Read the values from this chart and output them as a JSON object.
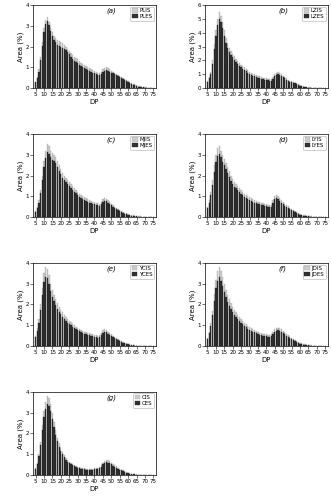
{
  "subplots": [
    {
      "label": "(a)",
      "IS_name": "PLIS",
      "ES_name": "PLES"
    },
    {
      "label": "(b)",
      "IS_name": "LZIS",
      "ES_name": "LZES"
    },
    {
      "label": "(c)",
      "IS_name": "MJIS",
      "ES_name": "MJES"
    },
    {
      "label": "(d)",
      "IS_name": "LYIS",
      "ES_name": "LYES"
    },
    {
      "label": "(e)",
      "IS_name": "YCIS",
      "ES_name": "YCES"
    },
    {
      "label": "(f)",
      "IS_name": "JDIS",
      "ES_name": "JDES"
    },
    {
      "label": "(g)",
      "IS_name": "CIS",
      "ES_name": "CES"
    }
  ],
  "dp_values": [
    5,
    6,
    7,
    8,
    9,
    10,
    11,
    12,
    13,
    14,
    15,
    16,
    17,
    18,
    19,
    20,
    21,
    22,
    23,
    24,
    25,
    26,
    27,
    28,
    29,
    30,
    31,
    32,
    33,
    34,
    35,
    36,
    37,
    38,
    39,
    40,
    41,
    42,
    43,
    44,
    45,
    46,
    47,
    48,
    49,
    50,
    51,
    52,
    53,
    54,
    55,
    56,
    57,
    58,
    59,
    60,
    61,
    62,
    63,
    64,
    65,
    66,
    67,
    68,
    69,
    70,
    71,
    72,
    73,
    74,
    75
  ],
  "series_IS": {
    "a": [
      0.3,
      0.55,
      0.9,
      1.5,
      2.2,
      2.9,
      3.3,
      3.4,
      3.2,
      2.9,
      2.7,
      2.5,
      2.4,
      2.3,
      2.25,
      2.2,
      2.15,
      2.1,
      2.0,
      1.9,
      1.8,
      1.7,
      1.6,
      1.5,
      1.45,
      1.4,
      1.3,
      1.2,
      1.15,
      1.1,
      1.05,
      1.0,
      0.95,
      0.9,
      0.88,
      0.85,
      0.8,
      0.75,
      0.72,
      0.8,
      0.9,
      0.95,
      1.0,
      0.95,
      0.9,
      0.85,
      0.8,
      0.75,
      0.7,
      0.65,
      0.6,
      0.55,
      0.5,
      0.45,
      0.4,
      0.35,
      0.3,
      0.25,
      0.2,
      0.18,
      0.15,
      0.12,
      0.1,
      0.08,
      0.06,
      0.05,
      0.04,
      0.03,
      0.02,
      0.01,
      0.01
    ],
    "b": [
      0.5,
      0.8,
      1.2,
      2.0,
      3.2,
      4.2,
      5.0,
      5.5,
      5.2,
      4.8,
      4.2,
      3.6,
      3.2,
      2.9,
      2.7,
      2.5,
      2.3,
      2.1,
      1.95,
      1.8,
      1.7,
      1.6,
      1.5,
      1.4,
      1.3,
      1.2,
      1.1,
      1.05,
      1.0,
      0.95,
      0.9,
      0.85,
      0.8,
      0.75,
      0.72,
      0.7,
      0.68,
      0.65,
      0.63,
      0.8,
      1.0,
      1.1,
      1.15,
      1.1,
      1.0,
      0.9,
      0.8,
      0.7,
      0.6,
      0.55,
      0.5,
      0.45,
      0.4,
      0.35,
      0.28,
      0.22,
      0.18,
      0.14,
      0.11,
      0.08,
      0.06,
      0.05,
      0.04,
      0.03,
      0.02,
      0.01,
      0.01,
      0.01,
      0.0,
      0.0,
      0.0
    ],
    "c": [
      0.3,
      0.5,
      0.8,
      1.3,
      2.0,
      2.7,
      3.2,
      3.5,
      3.4,
      3.2,
      3.1,
      3.0,
      2.9,
      2.7,
      2.5,
      2.3,
      2.1,
      2.0,
      1.9,
      1.8,
      1.7,
      1.6,
      1.5,
      1.4,
      1.3,
      1.2,
      1.1,
      1.05,
      1.0,
      0.95,
      0.9,
      0.85,
      0.8,
      0.78,
      0.75,
      0.72,
      0.7,
      0.68,
      0.65,
      0.75,
      0.85,
      0.9,
      0.88,
      0.8,
      0.72,
      0.65,
      0.58,
      0.5,
      0.45,
      0.4,
      0.35,
      0.3,
      0.25,
      0.22,
      0.18,
      0.15,
      0.12,
      0.1,
      0.08,
      0.06,
      0.05,
      0.04,
      0.03,
      0.02,
      0.01,
      0.01,
      0.01,
      0.0,
      0.0,
      0.0,
      0.0
    ],
    "d": [
      0.5,
      0.8,
      1.2,
      1.8,
      2.5,
      3.0,
      3.3,
      3.4,
      3.2,
      3.0,
      2.8,
      2.6,
      2.4,
      2.2,
      2.0,
      1.85,
      1.7,
      1.6,
      1.5,
      1.4,
      1.3,
      1.2,
      1.1,
      1.05,
      1.0,
      0.95,
      0.9,
      0.85,
      0.8,
      0.78,
      0.75,
      0.72,
      0.7,
      0.68,
      0.65,
      0.63,
      0.6,
      0.58,
      0.6,
      0.8,
      1.0,
      1.05,
      1.0,
      0.9,
      0.8,
      0.72,
      0.65,
      0.58,
      0.52,
      0.46,
      0.4,
      0.35,
      0.3,
      0.25,
      0.2,
      0.16,
      0.12,
      0.1,
      0.08,
      0.06,
      0.05,
      0.04,
      0.03,
      0.02,
      0.01,
      0.01,
      0.0,
      0.0,
      0.0,
      0.0,
      0.0
    ],
    "e": [
      0.5,
      0.85,
      1.3,
      2.0,
      2.8,
      3.5,
      3.8,
      3.7,
      3.4,
      3.0,
      2.7,
      2.45,
      2.25,
      2.05,
      1.9,
      1.75,
      1.62,
      1.5,
      1.4,
      1.3,
      1.22,
      1.14,
      1.06,
      1.0,
      0.94,
      0.88,
      0.83,
      0.78,
      0.74,
      0.7,
      0.67,
      0.64,
      0.61,
      0.58,
      0.56,
      0.54,
      0.52,
      0.5,
      0.53,
      0.65,
      0.75,
      0.8,
      0.78,
      0.7,
      0.63,
      0.56,
      0.5,
      0.44,
      0.38,
      0.33,
      0.28,
      0.24,
      0.2,
      0.17,
      0.14,
      0.11,
      0.09,
      0.07,
      0.05,
      0.04,
      0.03,
      0.02,
      0.02,
      0.01,
      0.01,
      0.01,
      0.0,
      0.0,
      0.0,
      0.0,
      0.0
    ],
    "f": [
      0.4,
      0.7,
      1.1,
      1.7,
      2.5,
      3.2,
      3.6,
      3.8,
      3.6,
      3.3,
      3.0,
      2.7,
      2.45,
      2.25,
      2.05,
      1.9,
      1.75,
      1.62,
      1.5,
      1.4,
      1.3,
      1.2,
      1.12,
      1.04,
      0.98,
      0.92,
      0.86,
      0.81,
      0.77,
      0.72,
      0.68,
      0.65,
      0.62,
      0.6,
      0.58,
      0.56,
      0.55,
      0.54,
      0.58,
      0.7,
      0.8,
      0.85,
      0.88,
      0.85,
      0.8,
      0.73,
      0.66,
      0.6,
      0.53,
      0.47,
      0.41,
      0.36,
      0.3,
      0.25,
      0.21,
      0.17,
      0.13,
      0.1,
      0.08,
      0.06,
      0.05,
      0.04,
      0.03,
      0.02,
      0.01,
      0.01,
      0.0,
      0.0,
      0.0,
      0.0,
      0.0
    ],
    "g": [
      0.35,
      0.6,
      1.0,
      1.6,
      2.4,
      3.1,
      3.5,
      3.8,
      3.7,
      3.4,
      3.0,
      2.55,
      2.15,
      1.8,
      1.52,
      1.28,
      1.1,
      0.95,
      0.82,
      0.72,
      0.64,
      0.57,
      0.52,
      0.47,
      0.43,
      0.4,
      0.37,
      0.35,
      0.33,
      0.32,
      0.31,
      0.3,
      0.3,
      0.3,
      0.31,
      0.32,
      0.33,
      0.35,
      0.38,
      0.48,
      0.6,
      0.68,
      0.72,
      0.7,
      0.65,
      0.59,
      0.53,
      0.47,
      0.41,
      0.36,
      0.31,
      0.26,
      0.22,
      0.18,
      0.15,
      0.12,
      0.09,
      0.07,
      0.05,
      0.04,
      0.03,
      0.02,
      0.01,
      0.01,
      0.01,
      0.0,
      0.0,
      0.0,
      0.0,
      0.0,
      0.0
    ]
  },
  "series_ES": {
    "a": [
      0.28,
      0.48,
      0.8,
      1.35,
      2.05,
      2.72,
      3.1,
      3.22,
      3.05,
      2.75,
      2.52,
      2.33,
      2.2,
      2.1,
      2.05,
      2.0,
      1.95,
      1.9,
      1.82,
      1.72,
      1.62,
      1.52,
      1.42,
      1.33,
      1.28,
      1.22,
      1.13,
      1.05,
      1.0,
      0.95,
      0.91,
      0.87,
      0.82,
      0.77,
      0.75,
      0.73,
      0.69,
      0.65,
      0.62,
      0.7,
      0.8,
      0.85,
      0.88,
      0.84,
      0.79,
      0.75,
      0.71,
      0.67,
      0.63,
      0.58,
      0.53,
      0.49,
      0.44,
      0.39,
      0.34,
      0.29,
      0.25,
      0.2,
      0.16,
      0.13,
      0.1,
      0.08,
      0.06,
      0.05,
      0.04,
      0.03,
      0.02,
      0.01,
      0.01,
      0.0,
      0.0
    ],
    "b": [
      0.43,
      0.7,
      1.05,
      1.75,
      2.85,
      3.8,
      4.55,
      5.02,
      4.75,
      4.35,
      3.8,
      3.28,
      2.9,
      2.62,
      2.42,
      2.23,
      2.04,
      1.88,
      1.73,
      1.6,
      1.5,
      1.4,
      1.3,
      1.21,
      1.12,
      1.04,
      0.96,
      0.91,
      0.86,
      0.81,
      0.77,
      0.72,
      0.68,
      0.64,
      0.61,
      0.59,
      0.57,
      0.55,
      0.53,
      0.68,
      0.87,
      0.97,
      1.02,
      0.97,
      0.87,
      0.79,
      0.7,
      0.61,
      0.52,
      0.47,
      0.42,
      0.38,
      0.34,
      0.29,
      0.23,
      0.18,
      0.14,
      0.1,
      0.08,
      0.06,
      0.04,
      0.03,
      0.02,
      0.02,
      0.01,
      0.01,
      0.0,
      0.0,
      0.0,
      0.0,
      0.0
    ],
    "c": [
      0.26,
      0.44,
      0.7,
      1.15,
      1.78,
      2.42,
      2.86,
      3.14,
      3.05,
      2.87,
      2.77,
      2.68,
      2.58,
      2.41,
      2.23,
      2.05,
      1.87,
      1.77,
      1.68,
      1.6,
      1.51,
      1.41,
      1.31,
      1.23,
      1.14,
      1.06,
      0.97,
      0.92,
      0.87,
      0.82,
      0.78,
      0.74,
      0.7,
      0.68,
      0.65,
      0.63,
      0.6,
      0.58,
      0.55,
      0.64,
      0.74,
      0.79,
      0.77,
      0.7,
      0.63,
      0.57,
      0.5,
      0.43,
      0.38,
      0.33,
      0.28,
      0.24,
      0.2,
      0.17,
      0.13,
      0.1,
      0.08,
      0.06,
      0.05,
      0.04,
      0.03,
      0.02,
      0.02,
      0.01,
      0.01,
      0.0,
      0.0,
      0.0,
      0.0,
      0.0,
      0.0
    ],
    "d": [
      0.44,
      0.7,
      1.04,
      1.56,
      2.19,
      2.67,
      2.95,
      3.05,
      2.87,
      2.67,
      2.49,
      2.3,
      2.1,
      1.92,
      1.75,
      1.61,
      1.47,
      1.38,
      1.3,
      1.2,
      1.11,
      1.04,
      0.96,
      0.91,
      0.86,
      0.81,
      0.77,
      0.72,
      0.68,
      0.66,
      0.63,
      0.61,
      0.59,
      0.57,
      0.54,
      0.53,
      0.51,
      0.49,
      0.51,
      0.69,
      0.88,
      0.93,
      0.88,
      0.79,
      0.69,
      0.62,
      0.55,
      0.5,
      0.44,
      0.38,
      0.33,
      0.28,
      0.25,
      0.2,
      0.16,
      0.12,
      0.09,
      0.07,
      0.05,
      0.04,
      0.03,
      0.02,
      0.02,
      0.01,
      0.01,
      0.0,
      0.0,
      0.0,
      0.0,
      0.0,
      0.0
    ],
    "e": [
      0.44,
      0.74,
      1.13,
      1.75,
      2.45,
      3.07,
      3.33,
      3.25,
      2.99,
      2.63,
      2.36,
      2.15,
      1.97,
      1.79,
      1.66,
      1.52,
      1.41,
      1.3,
      1.22,
      1.13,
      1.06,
      0.99,
      0.92,
      0.86,
      0.81,
      0.75,
      0.71,
      0.67,
      0.63,
      0.59,
      0.57,
      0.54,
      0.51,
      0.48,
      0.47,
      0.45,
      0.43,
      0.41,
      0.44,
      0.55,
      0.64,
      0.69,
      0.67,
      0.6,
      0.54,
      0.48,
      0.42,
      0.37,
      0.32,
      0.27,
      0.23,
      0.19,
      0.16,
      0.13,
      0.1,
      0.08,
      0.06,
      0.05,
      0.03,
      0.02,
      0.02,
      0.01,
      0.01,
      0.01,
      0.0,
      0.0,
      0.0,
      0.0,
      0.0,
      0.0,
      0.0
    ],
    "f": [
      0.35,
      0.61,
      0.95,
      1.47,
      2.17,
      2.78,
      3.13,
      3.3,
      3.13,
      2.87,
      2.6,
      2.35,
      2.12,
      1.95,
      1.77,
      1.63,
      1.51,
      1.4,
      1.29,
      1.21,
      1.12,
      1.04,
      0.96,
      0.9,
      0.84,
      0.79,
      0.73,
      0.7,
      0.66,
      0.61,
      0.58,
      0.55,
      0.52,
      0.5,
      0.48,
      0.47,
      0.45,
      0.45,
      0.48,
      0.59,
      0.69,
      0.73,
      0.75,
      0.72,
      0.68,
      0.62,
      0.56,
      0.5,
      0.45,
      0.39,
      0.34,
      0.29,
      0.24,
      0.2,
      0.16,
      0.12,
      0.09,
      0.07,
      0.05,
      0.04,
      0.03,
      0.02,
      0.02,
      0.01,
      0.01,
      0.0,
      0.0,
      0.0,
      0.0,
      0.0,
      0.0
    ],
    "g": [
      0.3,
      0.54,
      0.9,
      1.44,
      2.16,
      2.79,
      3.15,
      3.42,
      3.33,
      3.06,
      2.7,
      2.3,
      1.93,
      1.62,
      1.36,
      1.15,
      0.99,
      0.85,
      0.73,
      0.64,
      0.57,
      0.51,
      0.46,
      0.42,
      0.38,
      0.35,
      0.32,
      0.3,
      0.28,
      0.27,
      0.26,
      0.25,
      0.25,
      0.25,
      0.26,
      0.27,
      0.28,
      0.29,
      0.32,
      0.4,
      0.51,
      0.58,
      0.62,
      0.6,
      0.56,
      0.51,
      0.45,
      0.4,
      0.35,
      0.3,
      0.26,
      0.22,
      0.18,
      0.15,
      0.12,
      0.09,
      0.07,
      0.05,
      0.04,
      0.03,
      0.02,
      0.01,
      0.01,
      0.01,
      0.0,
      0.0,
      0.0,
      0.0,
      0.0,
      0.0,
      0.0
    ]
  },
  "ylims": {
    "a": [
      0,
      4.0
    ],
    "b": [
      0,
      6.0
    ],
    "c": [
      0,
      4.0
    ],
    "d": [
      0,
      4.0
    ],
    "e": [
      0,
      4.0
    ],
    "f": [
      0,
      4.0
    ],
    "g": [
      0,
      4.0
    ]
  },
  "yticks": {
    "a": [
      0,
      1,
      2,
      3,
      4
    ],
    "b": [
      0,
      1,
      2,
      3,
      4,
      5,
      6
    ],
    "c": [
      0,
      1,
      2,
      3,
      4
    ],
    "d": [
      0,
      1,
      2,
      3,
      4
    ],
    "e": [
      0,
      1,
      2,
      3,
      4
    ],
    "f": [
      0,
      1,
      2,
      3,
      4
    ],
    "g": [
      0,
      1,
      2,
      3,
      4
    ]
  },
  "xticks": [
    5,
    10,
    15,
    20,
    25,
    30,
    35,
    40,
    45,
    50,
    55,
    60,
    65,
    70,
    75
  ],
  "bar_width": 0.75,
  "color_IS": "#cccccc",
  "color_ES": "#333333",
  "edge_IS": "#999999",
  "edge_ES": "#111111",
  "ylabel": "Area (%)",
  "xlabel": "DP",
  "axis_fontsize": 5,
  "tick_fontsize": 4,
  "legend_fontsize": 4,
  "label_text_fontsize": 5,
  "fig_width": 3.31,
  "fig_height": 5.0,
  "dpi": 100
}
